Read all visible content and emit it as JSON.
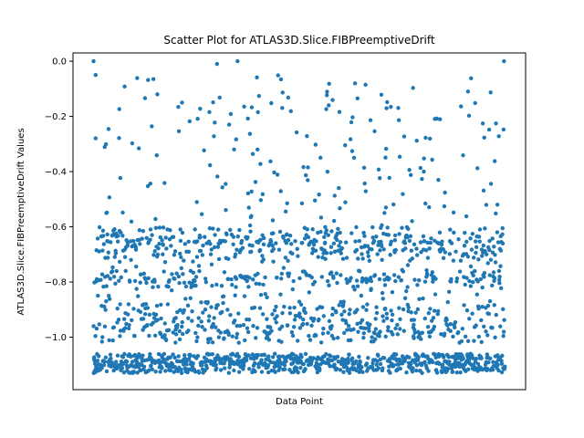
{
  "chart_data": {
    "type": "scatter",
    "title": "Scatter Plot for ATLAS3D.Slice.FIBPreemptiveDrift",
    "xlabel": "Data Point",
    "ylabel": "ATLAS3D.Slice.FIBPreemptiveDrift Values",
    "xlim": [
      -100,
      2100
    ],
    "ylim": [
      -1.19,
      0.03
    ],
    "yticks": [
      0.0,
      -0.2,
      -0.4,
      -0.6,
      -0.8,
      -1.0
    ],
    "ytick_labels": [
      "0.0",
      "−0.2",
      "−0.4",
      "−0.6",
      "−0.8",
      "−1.0"
    ],
    "xticks": [],
    "grid": false,
    "marker_color": "#1f77b4",
    "n_points": 2000,
    "x": [
      0,
      1999
    ],
    "highlighted_points": [
      {
        "x": 0,
        "y": 0.0
      },
      {
        "x": 600,
        "y": -0.01
      },
      {
        "x": 700,
        "y": 0.0
      },
      {
        "x": 1995,
        "y": 0.0
      },
      {
        "x": 10,
        "y": -0.05
      },
      {
        "x": 310,
        "y": -0.12
      },
      {
        "x": 1820,
        "y": -0.11
      }
    ],
    "distribution": {
      "cluster_levels": [
        -1.1,
        -1.08,
        -1.0,
        -0.97,
        -0.95,
        -0.9,
        -0.8,
        -0.78,
        -0.7,
        -0.67,
        -0.65,
        -0.62
      ],
      "sparse_range": [
        -0.6,
        -0.05
      ],
      "note_dense_band": [
        -1.13,
        -0.6
      ]
    }
  }
}
